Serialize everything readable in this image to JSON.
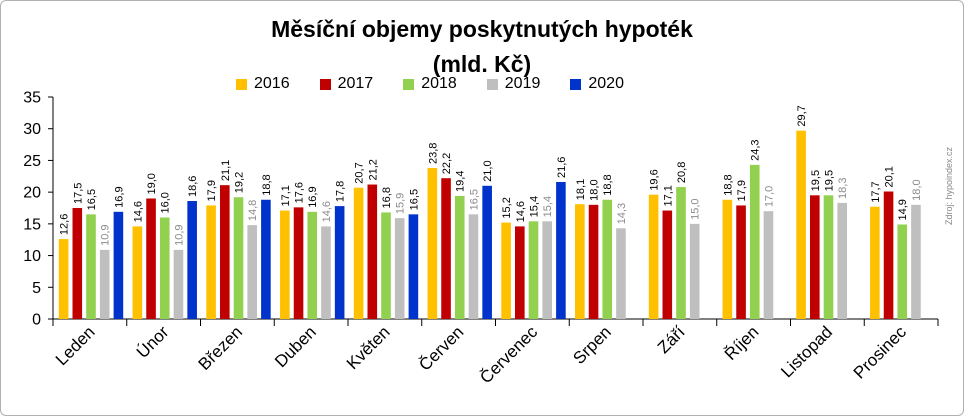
{
  "chart_data": {
    "type": "bar",
    "title": "Měsíční objemy poskytnutých hypoték",
    "subtitle": "(mld. Kč)",
    "categories": [
      "Leden",
      "Únor",
      "Březen",
      "Duben",
      "Květen",
      "Červen",
      "Červenec",
      "Srpen",
      "Září",
      "Říjen",
      "Listopad",
      "Prosinec"
    ],
    "series": [
      {
        "name": "2016",
        "color": "#FFC000",
        "values": [
          12.6,
          14.6,
          17.9,
          17.1,
          20.7,
          23.8,
          15.2,
          18.1,
          19.6,
          18.8,
          29.7,
          17.7
        ]
      },
      {
        "name": "2017",
        "color": "#C00000",
        "values": [
          17.5,
          19.0,
          21.1,
          17.6,
          21.2,
          22.2,
          14.6,
          18.0,
          17.1,
          17.9,
          19.5,
          20.1
        ]
      },
      {
        "name": "2018",
        "color": "#92D050",
        "values": [
          16.5,
          16.0,
          19.2,
          16.9,
          16.8,
          19.4,
          15.4,
          18.8,
          20.8,
          24.3,
          19.5,
          14.9
        ]
      },
      {
        "name": "2019",
        "color": "#BFBFBF",
        "values": [
          10.9,
          10.9,
          14.8,
          14.6,
          15.9,
          16.5,
          15.4,
          14.3,
          15.0,
          17.0,
          18.3,
          18.0
        ]
      },
      {
        "name": "2020",
        "color": "#0033CC",
        "values": [
          16.9,
          18.6,
          18.8,
          17.8,
          16.5,
          21.0,
          21.6,
          null,
          null,
          null,
          null,
          null
        ]
      }
    ],
    "value_labels": [
      [
        "12,6",
        "14,6",
        "17,9",
        "17,1",
        "20,7",
        "23,8",
        "15,2",
        "18,1",
        "19,6",
        "18,8",
        "29,7",
        "17,7"
      ],
      [
        "17,5",
        "19,0",
        "21,1",
        "17,6",
        "21,2",
        "22,2",
        "14,6",
        "18,0",
        "17,1",
        "17,9",
        "19,5",
        "20,1"
      ],
      [
        "16,5",
        "16,0",
        "19,2",
        "16,9",
        "16,8",
        "19,4",
        "15,4",
        "18,8",
        "20,8",
        "24,3",
        "19,5",
        "14,9"
      ],
      [
        "10,9",
        "10,9",
        "14,8",
        "14,6",
        "15,9",
        "16,5",
        "15,4",
        "14,3",
        "15,0",
        "17,0",
        "18,3",
        "18,0"
      ],
      [
        "16,9",
        "18,6",
        "18,8",
        "17,8",
        "16,5",
        "21,0",
        "21,6",
        null,
        null,
        null,
        null,
        null
      ]
    ],
    "label_colors": [
      "#000000",
      "#000000",
      "#000000",
      "#8C8C8C",
      "#000000"
    ],
    "xlabel": "",
    "ylabel": "",
    "ylim": [
      0,
      35
    ],
    "yticks": [
      0,
      5,
      10,
      15,
      20,
      25,
      30,
      35
    ],
    "grid": false,
    "legend_position": "top"
  },
  "source": "Zdroj: hypoindex.cz"
}
